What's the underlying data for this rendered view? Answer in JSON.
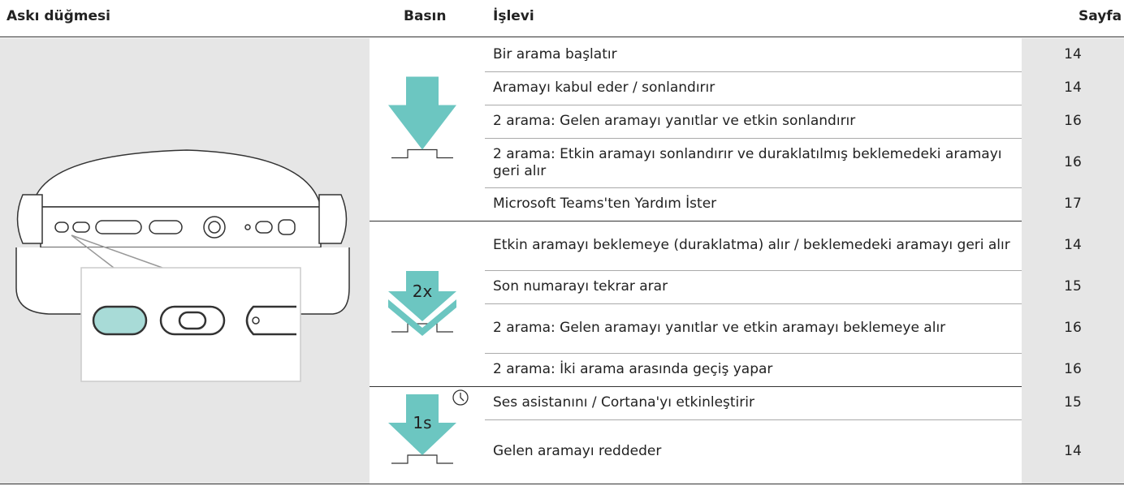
{
  "header": {
    "button": "Askı düğmesi",
    "press": "Basın",
    "function": "İşlevi",
    "page": "Sayfa"
  },
  "groups": [
    {
      "press_label": null,
      "rows": [
        {
          "function": "Bir arama başlatır",
          "page": 14
        },
        {
          "function": "Aramayı kabul eder / sonlandırır",
          "page": 14
        },
        {
          "function": "2 arama: Gelen aramayı yanıtlar ve etkin sonlandırır",
          "page": 16
        },
        {
          "function": "2 arama: Etkin aramayı sonlandırır ve duraklatılmış beklemedeki aramayı geri alır",
          "page": 16
        },
        {
          "function": "Microsoft Teams'ten Yardım İster",
          "page": 17
        }
      ]
    },
    {
      "press_label": "2x",
      "rows": [
        {
          "function": "Etkin aramayı beklemeye (duraklatma) alır / beklemedeki aramayı geri alır",
          "page": 14
        },
        {
          "function": "Son numarayı tekrar arar",
          "page": 15
        },
        {
          "function": "2 arama: Gelen aramayı yanıtlar ve etkin aramayı beklemeye alır",
          "page": 16
        },
        {
          "function": "2 arama: İki arama arasında geçiş yapar",
          "page": 16
        }
      ]
    },
    {
      "press_label": "1s",
      "rows": [
        {
          "function": "Ses asistanını / Cortana'yı etkinleştirir",
          "page": 15
        },
        {
          "function": "Gelen aramayı reddeder",
          "page": 14
        }
      ]
    }
  ]
}
